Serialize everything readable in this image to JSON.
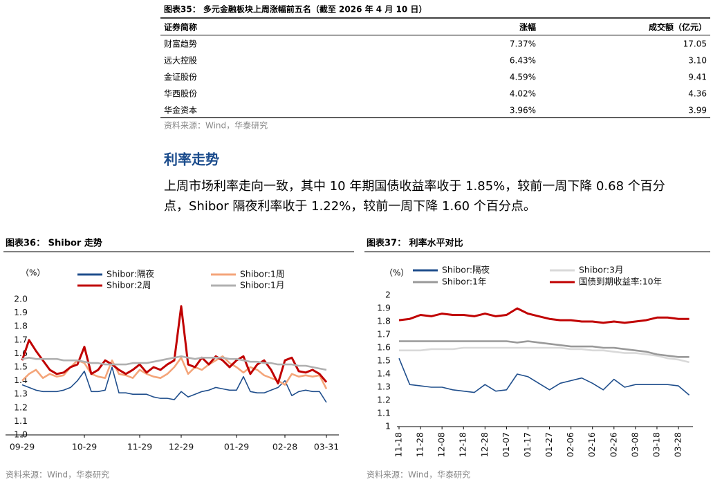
{
  "table": {
    "title": "图表35：  多元金融板块上周涨幅前五名（截至 2026 年 4 月 10 日）",
    "header": [
      "证券简称",
      "涨幅",
      "成交额（亿元）"
    ],
    "rows": [
      [
        "财富趋势",
        "7.37%",
        "17.05"
      ],
      [
        "远大控股",
        "6.43%",
        "3.10"
      ],
      [
        "金证股份",
        "4.59%",
        "9.41"
      ],
      [
        "华西股份",
        "4.02%",
        "4.36"
      ],
      [
        "华金资本",
        "3.96%",
        "3.99"
      ]
    ],
    "source": "资料来源：Wind，华泰研究"
  },
  "section": {
    "title": "利率走势",
    "paragraph": [
      "上周市场利率走向一致，其中 10 年期国债收益率收于 1.85%，较前一周下降 0.68 个百分",
      "点，Shibor 隔夜利率收于 1.22%，较前一周下降 1.60 个百分点。"
    ]
  },
  "chart_data": [
    {
      "type": "line",
      "title": "图表36：  Shibor 走势",
      "y_unit": "（%）",
      "source": "资料来源：Wind，华泰研究",
      "legend": "top",
      "categories": [
        "09-29",
        null,
        null,
        null,
        null,
        null,
        null,
        null,
        null,
        "10-29",
        null,
        null,
        null,
        null,
        null,
        null,
        null,
        "11-29",
        null,
        null,
        null,
        null,
        null,
        "12-29",
        null,
        null,
        null,
        null,
        null,
        null,
        null,
        "01-29",
        null,
        null,
        null,
        null,
        null,
        null,
        "02-28",
        null,
        null,
        null,
        null,
        null,
        "03-31"
      ],
      "ylim": [
        1.0,
        2.0
      ],
      "yticks": [
        {
          "value": 1.0,
          "label": "1.0"
        },
        1.1,
        1.2,
        1.3,
        1.4,
        1.5,
        1.6,
        1.7,
        1.8,
        1.9,
        {
          "value": 2.0,
          "label": "2.0"
        }
      ],
      "series": [
        {
          "name": "Shibor:隔夜",
          "color": "#1f4e8c",
          "values": [
            1.37,
            1.35,
            1.33,
            1.32,
            1.32,
            1.32,
            1.33,
            1.35,
            1.4,
            1.47,
            1.32,
            1.32,
            1.33,
            1.5,
            1.31,
            1.31,
            1.3,
            1.3,
            1.3,
            1.28,
            1.27,
            1.27,
            1.26,
            1.32,
            1.28,
            1.3,
            1.32,
            1.33,
            1.35,
            1.34,
            1.33,
            1.33,
            1.43,
            1.32,
            1.31,
            1.31,
            1.33,
            1.35,
            1.4,
            1.29,
            1.32,
            1.33,
            1.32,
            1.32,
            1.24
          ]
        },
        {
          "name": "Shibor:1周",
          "color": "#f4a57a",
          "values": [
            1.4,
            1.45,
            1.48,
            1.42,
            1.45,
            1.43,
            1.44,
            1.5,
            1.55,
            1.53,
            1.45,
            1.43,
            1.42,
            1.55,
            1.45,
            1.44,
            1.42,
            1.48,
            1.45,
            1.43,
            1.42,
            1.45,
            1.5,
            1.57,
            1.45,
            1.5,
            1.48,
            1.52,
            1.55,
            1.58,
            1.53,
            1.5,
            1.46,
            1.5,
            1.48,
            1.44,
            1.42,
            1.4,
            1.37,
            1.45,
            1.43,
            1.44,
            1.43,
            1.44,
            1.34
          ]
        },
        {
          "name": "Shibor:2周",
          "color": "#c00000",
          "values": [
            1.55,
            1.7,
            1.62,
            1.55,
            1.48,
            1.45,
            1.46,
            1.5,
            1.52,
            1.65,
            1.45,
            1.48,
            1.55,
            1.52,
            1.48,
            1.45,
            1.48,
            1.52,
            1.46,
            1.5,
            1.48,
            1.52,
            1.55,
            1.95,
            1.52,
            1.5,
            1.57,
            1.52,
            1.58,
            1.55,
            1.5,
            1.55,
            1.58,
            1.45,
            1.52,
            1.55,
            1.48,
            1.38,
            1.55,
            1.57,
            1.47,
            1.46,
            1.48,
            1.45,
            1.39
          ]
        },
        {
          "name": "Shibor:1月",
          "color": "#b0b0b0",
          "values": [
            1.56,
            1.57,
            1.56,
            1.56,
            1.56,
            1.56,
            1.55,
            1.55,
            1.55,
            1.54,
            1.53,
            1.53,
            1.52,
            1.52,
            1.52,
            1.52,
            1.53,
            1.53,
            1.53,
            1.54,
            1.55,
            1.56,
            1.57,
            1.58,
            1.57,
            1.56,
            1.57,
            1.57,
            1.57,
            1.57,
            1.56,
            1.56,
            1.55,
            1.54,
            1.54,
            1.53,
            1.53,
            1.52,
            1.52,
            1.52,
            1.51,
            1.51,
            1.5,
            1.49,
            1.48
          ]
        }
      ]
    },
    {
      "type": "line",
      "title": "图表37：  利率水平对比",
      "y_unit": "（%）",
      "source": "资料来源：Wind，华泰研究",
      "legend": "top",
      "rotate_x_labels": true,
      "categories": [
        "11-18",
        null,
        "11-28",
        null,
        "12-08",
        null,
        "12-18",
        null,
        "12-28",
        null,
        "01-07",
        null,
        "01-17",
        null,
        "01-27",
        null,
        "02-06",
        null,
        "02-16",
        null,
        "02-26",
        null,
        "03-08",
        null,
        "03-18",
        null,
        "03-28",
        null
      ],
      "ylim": [
        1,
        2
      ],
      "yticks": [
        1,
        1.1,
        1.2,
        1.3,
        1.4,
        1.5,
        1.6,
        1.7,
        1.8,
        1.9,
        2
      ],
      "series": [
        {
          "name": "Shibor:隔夜",
          "color": "#1f4e8c",
          "values": [
            1.52,
            1.32,
            1.31,
            1.3,
            1.3,
            1.28,
            1.27,
            1.26,
            1.32,
            1.27,
            1.28,
            1.4,
            1.38,
            1.33,
            1.28,
            1.33,
            1.35,
            1.37,
            1.33,
            1.28,
            1.36,
            1.3,
            1.32,
            1.32,
            1.32,
            1.32,
            1.31,
            1.24
          ]
        },
        {
          "name": "Shibor:3月",
          "color": "#d9d9d9",
          "values": [
            1.58,
            1.58,
            1.58,
            1.59,
            1.59,
            1.59,
            1.6,
            1.6,
            1.6,
            1.6,
            1.6,
            1.6,
            1.6,
            1.6,
            1.6,
            1.6,
            1.59,
            1.59,
            1.58,
            1.58,
            1.57,
            1.56,
            1.56,
            1.55,
            1.54,
            1.52,
            1.51,
            1.49
          ]
        },
        {
          "name": "Shibor:1年",
          "color": "#999999",
          "values": [
            1.65,
            1.65,
            1.65,
            1.65,
            1.65,
            1.65,
            1.65,
            1.65,
            1.65,
            1.65,
            1.65,
            1.64,
            1.65,
            1.64,
            1.63,
            1.62,
            1.61,
            1.61,
            1.61,
            1.6,
            1.6,
            1.59,
            1.58,
            1.57,
            1.55,
            1.54,
            1.53,
            1.53
          ]
        },
        {
          "name": "国债到期收益率:10年",
          "color": "#c00000",
          "values": [
            1.81,
            1.82,
            1.85,
            1.84,
            1.86,
            1.85,
            1.85,
            1.84,
            1.86,
            1.84,
            1.85,
            1.9,
            1.86,
            1.84,
            1.82,
            1.81,
            1.81,
            1.8,
            1.8,
            1.79,
            1.8,
            1.79,
            1.8,
            1.81,
            1.83,
            1.83,
            1.82,
            1.82
          ]
        }
      ]
    }
  ]
}
